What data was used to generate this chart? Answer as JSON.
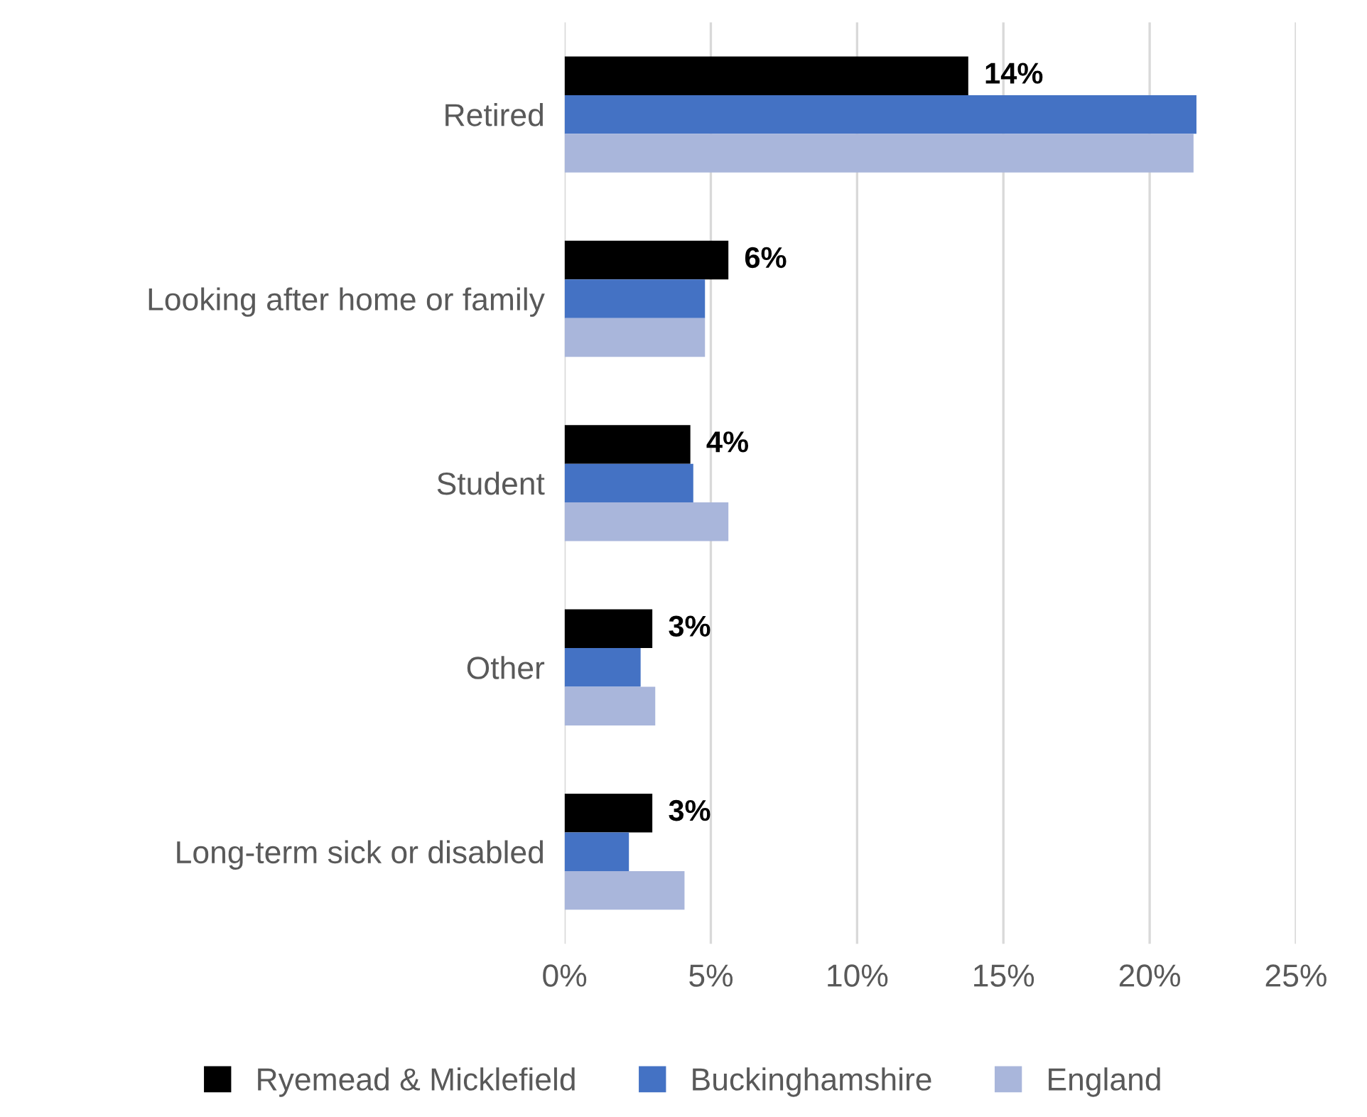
{
  "chart_data": {
    "type": "bar",
    "orientation": "horizontal",
    "categories": [
      "Retired",
      "Looking after home or family",
      "Student",
      "Other",
      "Long-term sick or disabled"
    ],
    "series": [
      {
        "name": "Ryemead & Micklefield",
        "color": "#000000",
        "values": [
          13.8,
          5.6,
          4.3,
          3.0,
          3.0
        ],
        "value_labels": [
          "14%",
          "6%",
          "4%",
          "3%",
          "3%"
        ]
      },
      {
        "name": "Buckinghamshire",
        "color": "#4472c4",
        "values": [
          21.6,
          4.8,
          4.4,
          2.6,
          2.2
        ]
      },
      {
        "name": "England",
        "color": "#a9b6db",
        "values": [
          21.5,
          4.8,
          5.6,
          3.1,
          4.1
        ]
      }
    ],
    "xlim": [
      0,
      25
    ],
    "xticks": [
      {
        "value": 0,
        "label": "0%"
      },
      {
        "value": 5,
        "label": "5%"
      },
      {
        "value": 10,
        "label": "10%"
      },
      {
        "value": 15,
        "label": "15%"
      },
      {
        "value": 20,
        "label": "20%"
      },
      {
        "value": 25,
        "label": "25%"
      }
    ],
    "grid": "x",
    "legend": "bottom"
  }
}
